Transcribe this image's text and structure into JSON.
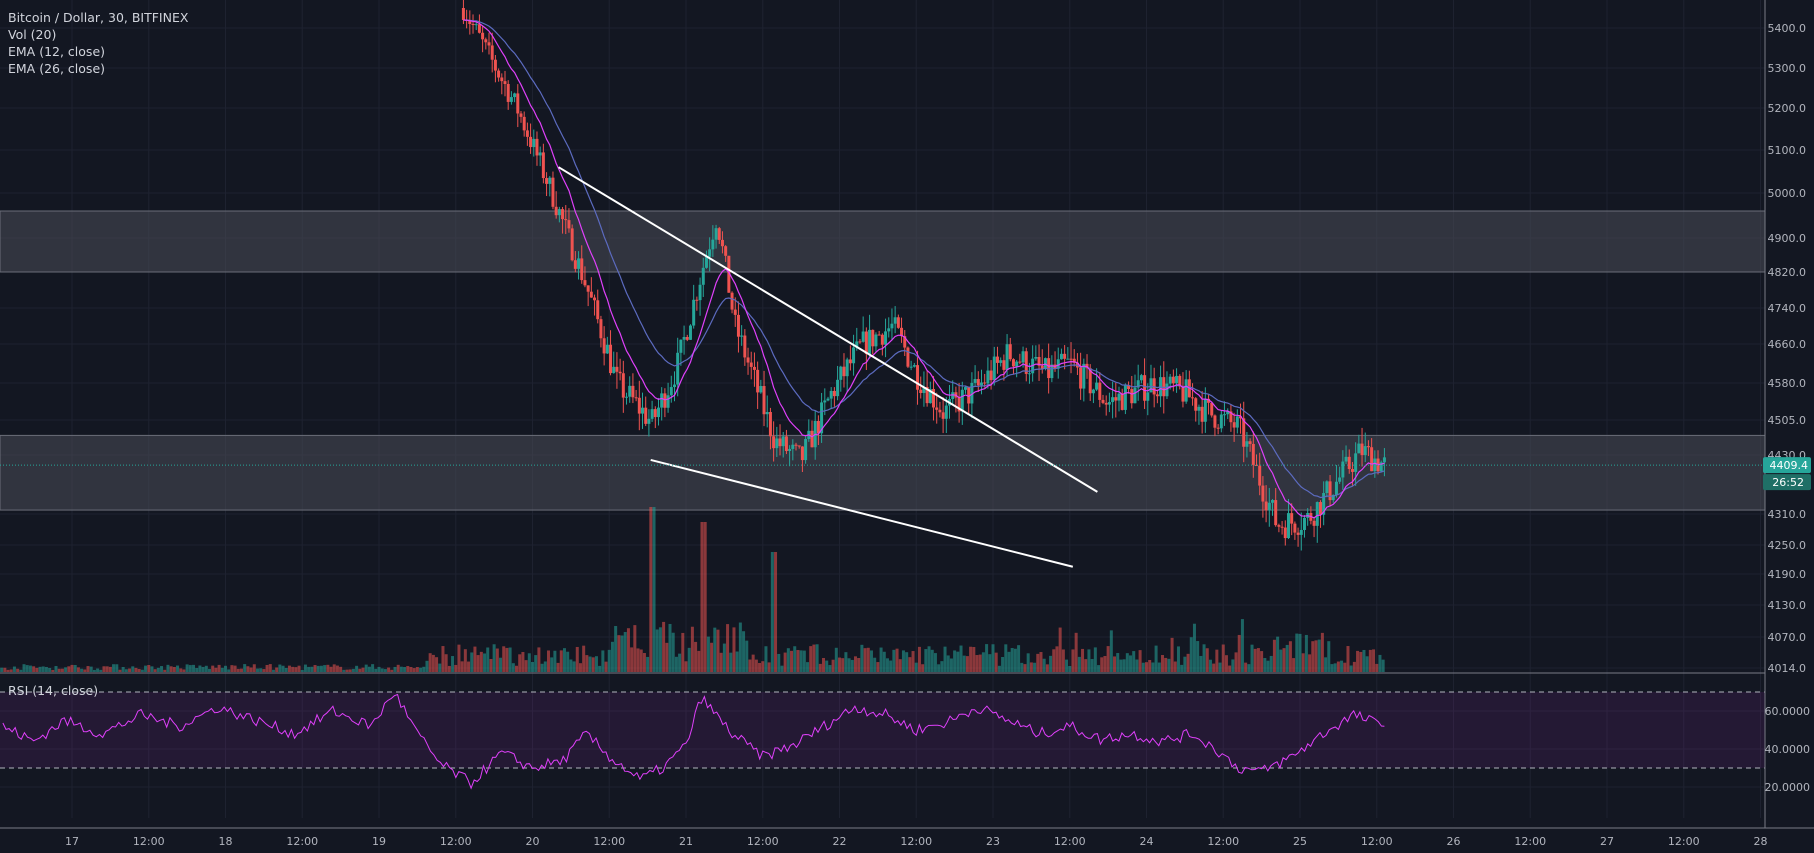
{
  "legend": {
    "symbol": "Bitcoin / Dollar, 30, BITFINEX",
    "vol": "Vol (20)",
    "ema12": "EMA (12, close)",
    "ema26": "EMA (26, close)"
  },
  "rsi_title": "RSI (14, close)",
  "price_badge": "4409.4",
  "countdown_badge": "26:52",
  "colors": {
    "background": "#131722",
    "grid": "#1e2230",
    "up": "#26a69a",
    "down": "#ef5350",
    "ema12": "#e040fb",
    "ema26": "#5c6bc0",
    "rsi": "#9c27b0",
    "zone": "#4a4d57",
    "badge": "#26a69a"
  },
  "chart_data": [
    {
      "type": "candlestick",
      "price_ticks": [
        "5400.0",
        "5300.0",
        "5200.0",
        "5100.0",
        "5000.0",
        "4900.0",
        "4820.0",
        "4740.0",
        "4660.0",
        "4580.0",
        "4505.0",
        "4430.0",
        "4310.0",
        "4250.0",
        "4190.0",
        "4130.0",
        "4070.0",
        "4014.0"
      ],
      "time_ticks": [
        "17",
        "12:00",
        "18",
        "12:00",
        "19",
        "12:00",
        "20",
        "12:00",
        "21",
        "12:00",
        "22",
        "12:00",
        "23",
        "12:00",
        "24",
        "12:00",
        "25",
        "12:00",
        "26",
        "12:00",
        "27",
        "12:00",
        "28"
      ],
      "last_price": 4409.4,
      "zones": [
        {
          "from": 4820,
          "to": 4960
        },
        {
          "from": 4318,
          "to": 4472
        }
      ],
      "trendlines": [
        {
          "from": {
            "day": 20.17,
            "price": 5060
          },
          "to": {
            "day": 23.68,
            "price": 4355
          }
        },
        {
          "from": {
            "day": 20.77,
            "price": 4420
          },
          "to": {
            "day": 23.52,
            "price": 4205
          }
        }
      ],
      "close_path": [
        {
          "day": 19.55,
          "price": 5450
        },
        {
          "day": 19.9,
          "price": 5200
        },
        {
          "day": 20.15,
          "price": 4980
        },
        {
          "day": 20.35,
          "price": 4790
        },
        {
          "day": 20.55,
          "price": 4580
        },
        {
          "day": 20.78,
          "price": 4500
        },
        {
          "day": 20.95,
          "price": 4620
        },
        {
          "day": 21.2,
          "price": 4950
        },
        {
          "day": 21.32,
          "price": 4700
        },
        {
          "day": 21.58,
          "price": 4460
        },
        {
          "day": 21.75,
          "price": 4420
        },
        {
          "day": 21.95,
          "price": 4560
        },
        {
          "day": 22.15,
          "price": 4660
        },
        {
          "day": 22.35,
          "price": 4700
        },
        {
          "day": 22.5,
          "price": 4600
        },
        {
          "day": 22.68,
          "price": 4520
        },
        {
          "day": 22.9,
          "price": 4570
        },
        {
          "day": 23.1,
          "price": 4640
        },
        {
          "day": 23.35,
          "price": 4600
        },
        {
          "day": 23.5,
          "price": 4620
        },
        {
          "day": 23.75,
          "price": 4540
        },
        {
          "day": 24.05,
          "price": 4580
        },
        {
          "day": 24.25,
          "price": 4560
        },
        {
          "day": 24.4,
          "price": 4520
        },
        {
          "day": 24.6,
          "price": 4490
        },
        {
          "day": 24.85,
          "price": 4290
        },
        {
          "day": 25.05,
          "price": 4300
        },
        {
          "day": 25.25,
          "price": 4380
        },
        {
          "day": 25.4,
          "price": 4440
        },
        {
          "day": 25.55,
          "price": 4409
        }
      ]
    },
    {
      "type": "line",
      "name": "RSI (14, close)",
      "y_ticks": [
        "60.0000",
        "40.0000",
        "20.0000"
      ],
      "bands": [
        70,
        30
      ],
      "points": [
        {
          "day": 16.55,
          "value": 52
        },
        {
          "day": 16.75,
          "value": 44
        },
        {
          "day": 16.95,
          "value": 55
        },
        {
          "day": 17.2,
          "value": 48
        },
        {
          "day": 17.45,
          "value": 58
        },
        {
          "day": 17.7,
          "value": 52
        },
        {
          "day": 17.95,
          "value": 62
        },
        {
          "day": 18.2,
          "value": 55
        },
        {
          "day": 18.45,
          "value": 48
        },
        {
          "day": 18.7,
          "value": 60
        },
        {
          "day": 18.95,
          "value": 52
        },
        {
          "day": 19.1,
          "value": 70
        },
        {
          "day": 19.25,
          "value": 48
        },
        {
          "day": 19.4,
          "value": 32
        },
        {
          "day": 19.6,
          "value": 22
        },
        {
          "day": 19.8,
          "value": 38
        },
        {
          "day": 20.0,
          "value": 30
        },
        {
          "day": 20.2,
          "value": 34
        },
        {
          "day": 20.35,
          "value": 48
        },
        {
          "day": 20.5,
          "value": 36
        },
        {
          "day": 20.7,
          "value": 24
        },
        {
          "day": 20.85,
          "value": 30
        },
        {
          "day": 21.0,
          "value": 42
        },
        {
          "day": 21.1,
          "value": 67
        },
        {
          "day": 21.3,
          "value": 48
        },
        {
          "day": 21.5,
          "value": 36
        },
        {
          "day": 21.7,
          "value": 42
        },
        {
          "day": 21.9,
          "value": 52
        },
        {
          "day": 22.1,
          "value": 62
        },
        {
          "day": 22.3,
          "value": 58
        },
        {
          "day": 22.5,
          "value": 50
        },
        {
          "day": 22.7,
          "value": 54
        },
        {
          "day": 22.9,
          "value": 62
        },
        {
          "day": 23.1,
          "value": 55
        },
        {
          "day": 23.3,
          "value": 48
        },
        {
          "day": 23.5,
          "value": 52
        },
        {
          "day": 23.7,
          "value": 45
        },
        {
          "day": 23.9,
          "value": 48
        },
        {
          "day": 24.1,
          "value": 44
        },
        {
          "day": 24.3,
          "value": 48
        },
        {
          "day": 24.45,
          "value": 40
        },
        {
          "day": 24.6,
          "value": 30
        },
        {
          "day": 24.75,
          "value": 28
        },
        {
          "day": 24.95,
          "value": 36
        },
        {
          "day": 25.15,
          "value": 48
        },
        {
          "day": 25.35,
          "value": 58
        },
        {
          "day": 25.55,
          "value": 52
        }
      ]
    }
  ]
}
